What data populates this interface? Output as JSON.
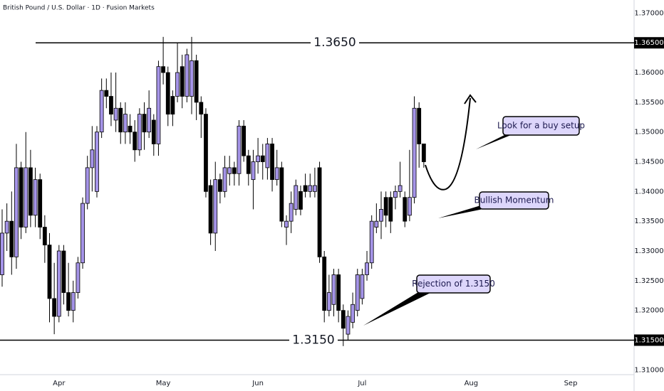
{
  "chart_data": {
    "type": "candlestick",
    "title": "British Pound / U.S. Dollar · 1D · Fusion Markets",
    "up_color": "#a594e8",
    "down_color": "#000000",
    "categories": [
      null,
      null,
      null,
      null,
      null,
      null,
      null,
      null,
      null,
      null,
      null,
      null,
      "Apr",
      null,
      null,
      null,
      null,
      null,
      null,
      null,
      null,
      null,
      null,
      null,
      null,
      null,
      null,
      null,
      null,
      null,
      null,
      null,
      null,
      null,
      "May",
      null,
      null,
      null,
      null,
      null,
      null,
      null,
      null,
      null,
      null,
      null,
      null,
      null,
      null,
      null,
      null,
      null,
      null,
      null,
      "Jun",
      null,
      null,
      null,
      null,
      null,
      null,
      null,
      null,
      null,
      null,
      null,
      null,
      null,
      null,
      null,
      null,
      null,
      null,
      null,
      null,
      null,
      "Jul",
      null,
      null,
      null,
      null,
      null,
      null,
      null,
      null,
      null,
      null,
      null,
      null,
      null,
      null,
      null,
      null,
      null,
      null,
      null,
      null,
      null,
      null,
      "Aug",
      null,
      null,
      null,
      null,
      null,
      null,
      null,
      null,
      null,
      null,
      null,
      null,
      null,
      null,
      null,
      null,
      null,
      null,
      null,
      null,
      "Sep"
    ],
    "open": [
      1.326,
      1.333,
      1.335,
      1.329,
      1.344,
      1.334,
      1.344,
      1.336,
      1.342,
      1.334,
      1.331,
      1.322,
      1.319,
      1.33,
      1.323,
      1.32,
      1.323,
      1.328,
      1.338,
      1.344,
      1.34,
      1.35,
      1.357,
      1.356,
      1.352,
      1.354,
      1.35,
      1.351,
      1.35,
      1.347,
      1.353,
      1.35,
      1.352,
      1.348,
      1.361,
      1.36,
      1.356,
      1.356,
      1.361,
      1.356,
      1.356,
      1.362,
      1.355,
      1.353,
      1.341,
      1.333,
      1.342,
      1.34,
      1.343,
      1.344,
      1.343,
      1.351,
      1.346,
      1.342,
      1.345,
      1.346,
      1.344,
      1.348,
      1.342,
      1.344,
      1.334,
      1.335,
      1.337,
      1.34,
      1.341,
      1.34,
      1.34,
      1.344,
      1.329,
      1.32,
      1.321,
      1.326,
      1.32,
      1.316,
      1.318,
      1.32,
      1.322,
      1.326,
      1.328,
      1.334,
      1.335,
      1.339,
      1.339,
      1.339,
      1.34,
      1.339,
      1.336,
      1.339,
      1.354,
      1.348,
      null,
      null,
      null,
      null,
      null,
      null,
      null,
      null,
      null,
      null,
      null,
      null,
      null,
      null,
      null,
      null,
      null,
      null,
      null,
      null,
      null,
      null,
      null,
      null,
      null,
      null,
      null,
      null,
      null,
      null,
      null
    ],
    "high": [
      1.337,
      1.338,
      1.34,
      1.348,
      1.345,
      1.35,
      1.347,
      1.344,
      1.343,
      1.336,
      1.333,
      1.328,
      1.331,
      1.331,
      1.328,
      1.325,
      1.329,
      1.339,
      1.346,
      1.351,
      1.351,
      1.359,
      1.359,
      1.36,
      1.36,
      1.355,
      1.355,
      1.353,
      1.352,
      1.354,
      1.355,
      1.357,
      1.353,
      1.362,
      1.366,
      1.361,
      1.357,
      1.365,
      1.363,
      1.364,
      1.366,
      1.363,
      1.356,
      1.354,
      1.342,
      1.345,
      1.343,
      1.346,
      1.346,
      1.345,
      1.352,
      1.352,
      1.347,
      1.347,
      1.349,
      1.348,
      1.349,
      1.349,
      1.347,
      1.345,
      1.336,
      1.34,
      1.342,
      1.341,
      1.343,
      1.343,
      1.344,
      1.345,
      1.33,
      1.326,
      1.327,
      1.327,
      1.321,
      1.32,
      1.323,
      1.327,
      1.327,
      1.33,
      1.336,
      1.338,
      1.34,
      1.34,
      1.34,
      1.341,
      1.345,
      1.34,
      1.347,
      1.356,
      1.355,
      1.348,
      null,
      null,
      null,
      null,
      null,
      null,
      null,
      null,
      null,
      null,
      null,
      null,
      null,
      null,
      null,
      null,
      null,
      null,
      null,
      null,
      null,
      null,
      null,
      null,
      null,
      null,
      null,
      null,
      null,
      null,
      null
    ],
    "low": [
      1.324,
      1.33,
      1.326,
      1.327,
      1.332,
      1.333,
      1.334,
      1.334,
      1.332,
      1.328,
      1.318,
      1.316,
      1.318,
      1.321,
      1.319,
      1.318,
      1.322,
      1.327,
      1.337,
      1.34,
      1.339,
      1.349,
      1.354,
      1.351,
      1.35,
      1.348,
      1.348,
      1.348,
      1.345,
      1.346,
      1.347,
      1.349,
      1.346,
      1.346,
      1.358,
      1.351,
      1.351,
      1.355,
      1.354,
      1.355,
      1.353,
      1.352,
      1.349,
      1.339,
      1.331,
      1.33,
      1.338,
      1.339,
      1.341,
      1.341,
      1.341,
      1.345,
      1.341,
      1.337,
      1.343,
      1.342,
      1.342,
      1.34,
      1.341,
      1.334,
      1.331,
      1.333,
      1.336,
      1.336,
      1.339,
      1.339,
      1.339,
      1.328,
      1.318,
      1.319,
      1.319,
      1.318,
      1.314,
      1.315,
      1.317,
      1.319,
      1.321,
      1.325,
      1.327,
      1.333,
      1.332,
      1.334,
      1.333,
      1.337,
      1.339,
      1.334,
      1.335,
      1.338,
      1.344,
      1.344,
      null,
      null,
      null,
      null,
      null,
      null,
      null,
      null,
      null,
      null,
      null,
      null,
      null,
      null,
      null,
      null,
      null,
      null,
      null,
      null,
      null,
      null,
      null,
      null,
      null,
      null,
      null,
      null,
      null,
      null,
      null
    ],
    "close": [
      1.333,
      1.335,
      1.329,
      1.344,
      1.334,
      1.344,
      1.336,
      1.342,
      1.334,
      1.331,
      1.322,
      1.319,
      1.33,
      1.323,
      1.32,
      1.323,
      1.328,
      1.338,
      1.344,
      1.347,
      1.35,
      1.357,
      1.356,
      1.353,
      1.354,
      1.35,
      1.353,
      1.35,
      1.347,
      1.353,
      1.35,
      1.354,
      1.348,
      1.361,
      1.36,
      1.353,
      1.353,
      1.36,
      1.356,
      1.363,
      1.362,
      1.355,
      1.353,
      1.34,
      1.333,
      1.342,
      1.34,
      1.344,
      1.344,
      1.343,
      1.351,
      1.346,
      1.343,
      1.345,
      1.346,
      1.345,
      1.348,
      1.342,
      1.344,
      1.335,
      1.335,
      1.338,
      1.341,
      1.337,
      1.34,
      1.341,
      1.341,
      1.329,
      1.32,
      1.323,
      1.326,
      1.32,
      1.317,
      1.319,
      1.321,
      1.326,
      1.326,
      1.328,
      1.335,
      1.335,
      1.337,
      1.336,
      1.335,
      1.34,
      1.341,
      1.335,
      1.339,
      1.354,
      1.348,
      1.345,
      null,
      null,
      null,
      null,
      null,
      null,
      null,
      null,
      null,
      null,
      null,
      null,
      null,
      null,
      null,
      null,
      null,
      null,
      null,
      null,
      null,
      null,
      null,
      null,
      null,
      null,
      null,
      null,
      null,
      null,
      null
    ],
    "ylim": [
      1.3092,
      1.3722
    ],
    "yticks": [
      {
        "value": 1.37,
        "label": "1.37000"
      },
      {
        "value": 1.36,
        "label": "1.36000"
      },
      {
        "value": 1.355,
        "label": "1.35500"
      },
      {
        "value": 1.35,
        "label": "1.35000"
      },
      {
        "value": 1.345,
        "label": "1.34500"
      },
      {
        "value": 1.34,
        "label": "1.34000"
      },
      {
        "value": 1.335,
        "label": "1.33500"
      },
      {
        "value": 1.33,
        "label": "1.33000"
      },
      {
        "value": 1.325,
        "label": "1.32500"
      },
      {
        "value": 1.32,
        "label": "1.32000"
      },
      {
        "value": 1.31,
        "label": "1.31000"
      }
    ],
    "levels": [
      {
        "value": 1.365,
        "label": "1.3650",
        "axis_label": "1.36500"
      },
      {
        "value": 1.315,
        "label": "1.3150",
        "axis_label": "1.31500"
      }
    ],
    "annotations": [
      "Look for a buy setup",
      "Bullish Momentum",
      "Rejection of 1.3150"
    ]
  }
}
